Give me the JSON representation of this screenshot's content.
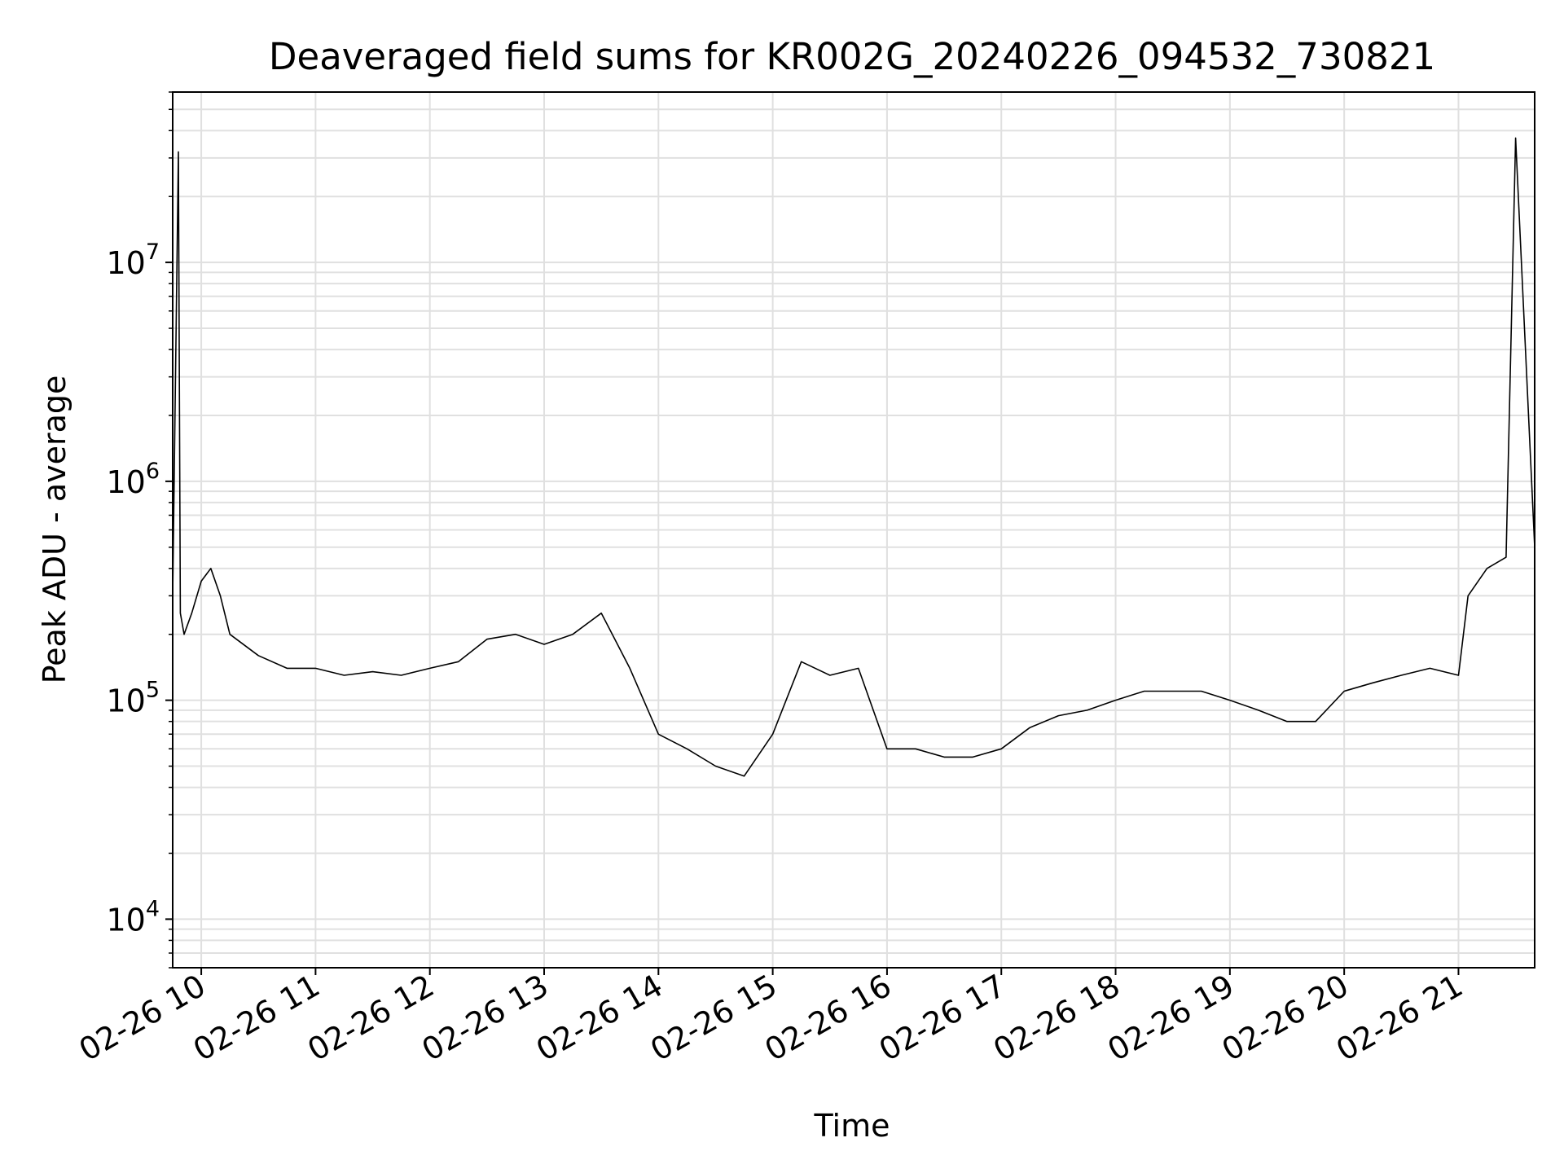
{
  "chart_data": {
    "type": "line",
    "title": "Deaveraged field sums for KR002G_20240226_094532_730821",
    "xlabel": "Time",
    "ylabel": "Peak ADU - average",
    "yscale": "log",
    "ylim": [
      6000,
      60000000
    ],
    "xlim": [
      "2024-02-26 09:45",
      "2024-02-26 21:40"
    ],
    "grid": true,
    "line_color": "#000000",
    "grid_color": "#e0e0e0",
    "x_ticks": [
      "02-26 10",
      "02-26 11",
      "02-26 12",
      "02-26 13",
      "02-26 14",
      "02-26 15",
      "02-26 16",
      "02-26 17",
      "02-26 18",
      "02-26 19",
      "02-26 20",
      "02-26 21"
    ],
    "y_ticks": [
      {
        "value": 10000,
        "base": "10",
        "exp": "4"
      },
      {
        "value": 100000,
        "base": "10",
        "exp": "5"
      },
      {
        "value": 1000000,
        "base": "10",
        "exp": "6"
      },
      {
        "value": 10000000,
        "base": "10",
        "exp": "7"
      }
    ],
    "series": [
      {
        "x": [
          "2024-02-26 09:45",
          "2024-02-26 09:48",
          "2024-02-26 09:49",
          "2024-02-26 09:51",
          "2024-02-26 09:55",
          "2024-02-26 10:00",
          "2024-02-26 10:05",
          "2024-02-26 10:10",
          "2024-02-26 10:15",
          "2024-02-26 10:30",
          "2024-02-26 10:45",
          "2024-02-26 11:00",
          "2024-02-26 11:15",
          "2024-02-26 11:30",
          "2024-02-26 11:45",
          "2024-02-26 12:00",
          "2024-02-26 12:15",
          "2024-02-26 12:30",
          "2024-02-26 12:45",
          "2024-02-26 13:00",
          "2024-02-26 13:15",
          "2024-02-26 13:30",
          "2024-02-26 13:45",
          "2024-02-26 14:00",
          "2024-02-26 14:15",
          "2024-02-26 14:30",
          "2024-02-26 14:45",
          "2024-02-26 15:00",
          "2024-02-26 15:15",
          "2024-02-26 15:30",
          "2024-02-26 15:45",
          "2024-02-26 16:00",
          "2024-02-26 16:15",
          "2024-02-26 16:30",
          "2024-02-26 16:45",
          "2024-02-26 17:00",
          "2024-02-26 17:15",
          "2024-02-26 17:30",
          "2024-02-26 17:45",
          "2024-02-26 18:00",
          "2024-02-26 18:15",
          "2024-02-26 18:30",
          "2024-02-26 18:45",
          "2024-02-26 19:00",
          "2024-02-26 19:15",
          "2024-02-26 19:30",
          "2024-02-26 19:45",
          "2024-02-26 20:00",
          "2024-02-26 20:15",
          "2024-02-26 20:30",
          "2024-02-26 20:45",
          "2024-02-26 21:00",
          "2024-02-26 21:05",
          "2024-02-26 21:15",
          "2024-02-26 21:25",
          "2024-02-26 21:30",
          "2024-02-26 21:40"
        ],
        "y": [
          300000,
          32000000,
          250000,
          200000,
          250000,
          350000,
          400000,
          300000,
          200000,
          160000,
          140000,
          140000,
          130000,
          135000,
          130000,
          140000,
          150000,
          190000,
          200000,
          180000,
          200000,
          250000,
          140000,
          70000,
          60000,
          50000,
          45000,
          70000,
          150000,
          130000,
          140000,
          60000,
          60000,
          55000,
          55000,
          60000,
          75000,
          85000,
          90000,
          100000,
          110000,
          110000,
          110000,
          100000,
          90000,
          80000,
          80000,
          110000,
          120000,
          130000,
          140000,
          130000,
          300000,
          400000,
          450000,
          37000000,
          500000
        ]
      }
    ]
  }
}
